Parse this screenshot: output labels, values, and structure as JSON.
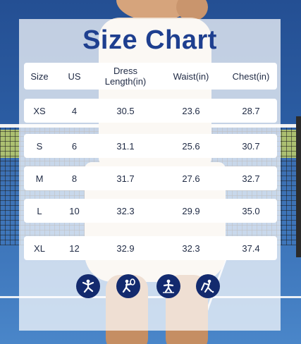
{
  "title": "Size Chart",
  "header": {
    "size": "Size",
    "us": "US",
    "dress_line1": "Dress",
    "dress_line2": "Length(in)",
    "waist": "Waist(in)",
    "chest": "Chest(in)"
  },
  "rows": [
    {
      "size": "XS",
      "us": "4",
      "dress": "30.5",
      "waist": "23.6",
      "chest": "28.7"
    },
    {
      "size": "S",
      "us": "6",
      "dress": "31.1",
      "waist": "25.6",
      "chest": "30.7"
    },
    {
      "size": "M",
      "us": "8",
      "dress": "31.7",
      "waist": "27.6",
      "chest": "32.7"
    },
    {
      "size": "L",
      "us": "10",
      "dress": "32.3",
      "waist": "29.9",
      "chest": "35.0"
    },
    {
      "size": "XL",
      "us": "12",
      "dress": "32.9",
      "waist": "32.3",
      "chest": "37.4"
    }
  ],
  "icons": [
    "yoga-icon",
    "tennis-icon",
    "workout-icon",
    "golf-icon"
  ],
  "colors": {
    "title": "#1e3f8f",
    "icon_bg": "#132a6e",
    "court": "#3a6db0"
  }
}
